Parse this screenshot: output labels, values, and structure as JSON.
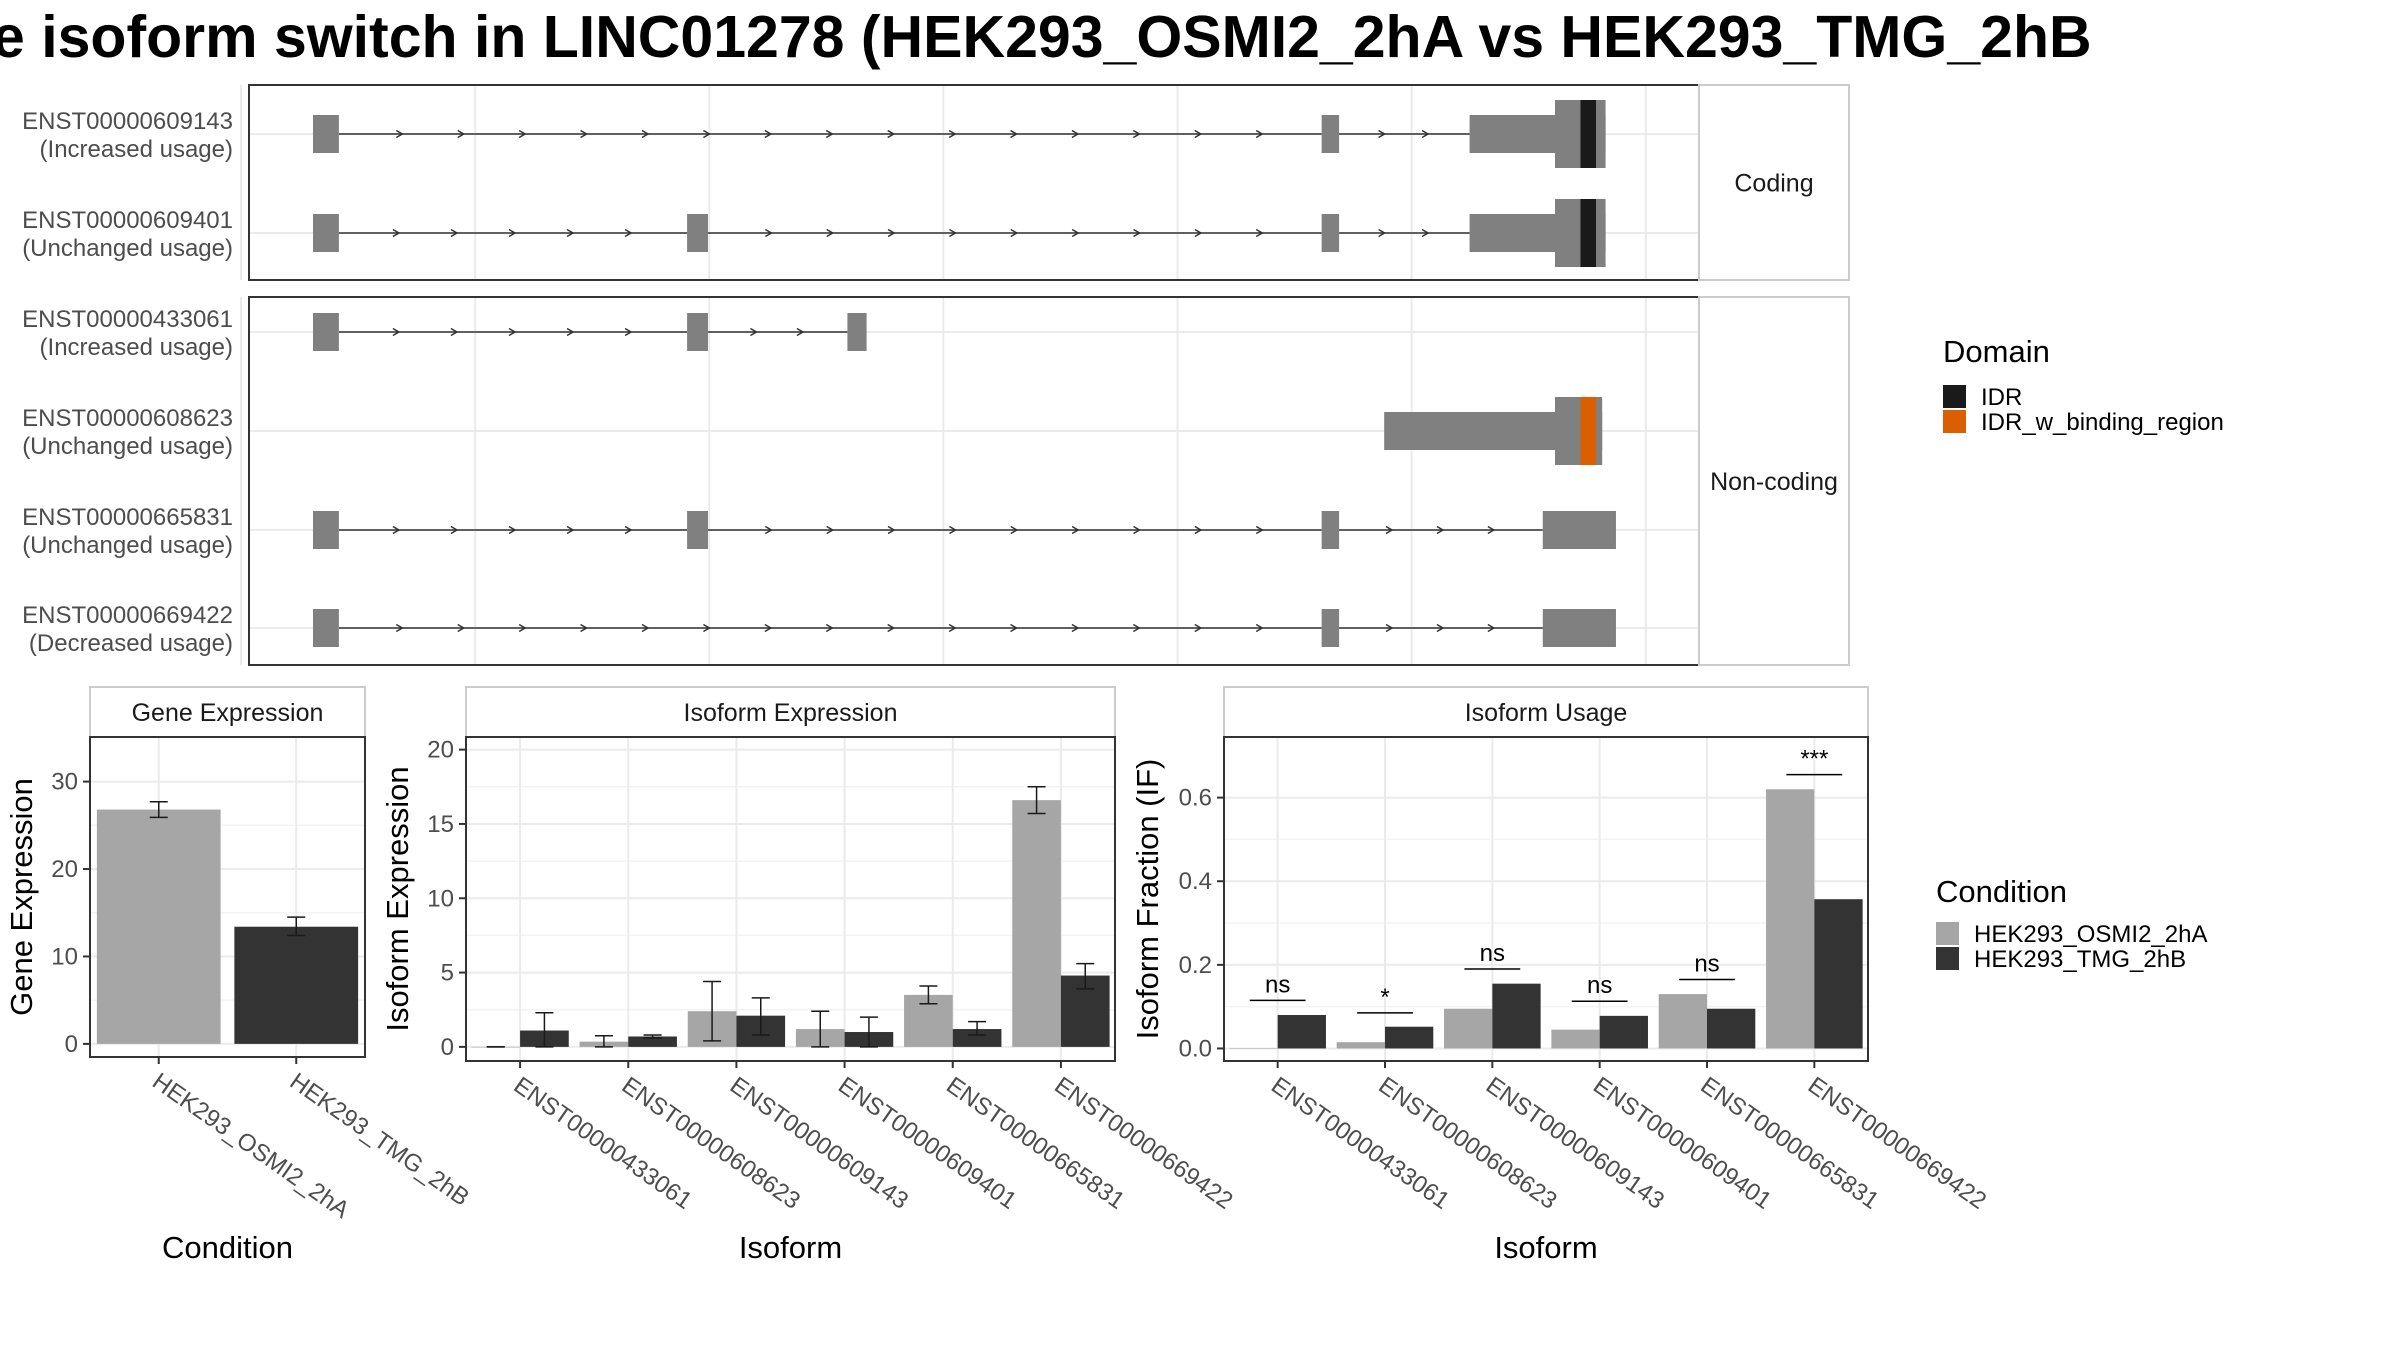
{
  "title": "e isoform switch in LINC01278 (HEK293_OSMI2_2hA vs HEK293_TMG_2hB",
  "colors": {
    "exon": "#808080",
    "intron": "#333333",
    "cond_a": "#a6a6a6",
    "cond_b": "#333333",
    "IDR": "#1a1a1a",
    "IDR_w_binding_region": "#d95f02",
    "grid": "#ebebeb",
    "panel_border": "#333333",
    "strip_bg": "#ffffff"
  },
  "chart_data": [
    {
      "type": "gene-structure",
      "panels": [
        {
          "strip": "Coding",
          "transcripts": [
            {
              "id": "ENST00000609143",
              "usage": "(Increased usage)",
              "exons": [
                [
                  0.0,
                  0.0197
                ],
                [
                  0.7676,
                  0.7809
                ],
                [
                  0.8802,
                  0.9837
                ]
              ],
              "cds": [
                0.9452,
                0.9837
              ],
              "domains": [
                {
                  "name": "IDR",
                  "range": [
                    0.9646,
                    0.9764
                  ]
                }
              ]
            },
            {
              "id": "ENST00000609401",
              "usage": "(Unchanged usage)",
              "exons": [
                [
                  0.0,
                  0.0197
                ],
                [
                  0.2847,
                  0.3006
                ],
                [
                  0.7676,
                  0.7809
                ],
                [
                  0.8802,
                  0.9837
                ]
              ],
              "cds": [
                0.9452,
                0.9837
              ],
              "domains": [
                {
                  "name": "IDR",
                  "range": [
                    0.9646,
                    0.9764
                  ]
                }
              ]
            }
          ]
        },
        {
          "strip": "Non-coding",
          "transcripts": [
            {
              "id": "ENST00000433061",
              "usage": "(Increased usage)",
              "exons": [
                [
                  0.0,
                  0.0197
                ],
                [
                  0.2847,
                  0.3006
                ],
                [
                  0.4067,
                  0.4213
                ]
              ],
              "cds": null,
              "domains": []
            },
            {
              "id": "ENST00000608623",
              "usage": "(Unchanged usage)",
              "exons": [
                [
                  0.8152,
                  0.9811
                ]
              ],
              "cds": [
                0.9452,
                0.9811
              ],
              "domains": [
                {
                  "name": "IDR_w_binding_region",
                  "range": [
                    0.9646,
                    0.9764
                  ]
                }
              ]
            },
            {
              "id": "ENST00000665831",
              "usage": "(Unchanged usage)",
              "exons": [
                [
                  0.0,
                  0.0197
                ],
                [
                  0.2847,
                  0.3006
                ],
                [
                  0.7676,
                  0.7809
                ],
                [
                  0.9359,
                  0.9916
                ]
              ],
              "cds": null,
              "domains": []
            },
            {
              "id": "ENST00000669422",
              "usage": "(Decreased usage)",
              "exons": [
                [
                  0.0,
                  0.0197
                ],
                [
                  0.7676,
                  0.7809
                ],
                [
                  0.9359,
                  0.9916
                ]
              ],
              "cds": null,
              "domains": []
            }
          ]
        }
      ],
      "legend": {
        "title": "Domain",
        "entries": [
          "IDR",
          "IDR_w_binding_region"
        ]
      }
    },
    {
      "type": "bar",
      "strip": "Gene Expression",
      "xlabel": "Condition",
      "ylabel": "Gene Expression",
      "categories": [
        "HEK293_OSMI2_2hA",
        "HEK293_TMG_2hB"
      ],
      "values": [
        26.8,
        13.4
      ],
      "errors": [
        [
          25.9,
          27.7
        ],
        [
          12.4,
          14.5
        ]
      ],
      "ylim": [
        -1.5,
        35.1
      ],
      "yticks": [
        0,
        10,
        20,
        30
      ],
      "grid": true
    },
    {
      "type": "bar",
      "strip": "Isoform Expression",
      "xlabel": "Isoform",
      "ylabel": "Isoform Expression",
      "categories": [
        "ENST00000433061",
        "ENST00000608623",
        "ENST00000609143",
        "ENST00000609401",
        "ENST00000665831",
        "ENST00000669422"
      ],
      "series": [
        {
          "name": "HEK293_OSMI2_2hA",
          "values": [
            0.0,
            0.35,
            2.4,
            1.2,
            3.5,
            16.6
          ],
          "errors": [
            [
              0.0,
              0.0
            ],
            [
              0.0,
              0.75
            ],
            [
              0.4,
              4.4
            ],
            [
              0.0,
              2.4
            ],
            [
              2.9,
              4.1
            ],
            [
              15.7,
              17.5
            ]
          ]
        },
        {
          "name": "HEK293_TMG_2hB",
          "values": [
            1.1,
            0.7,
            2.1,
            1.0,
            1.2,
            4.8
          ],
          "errors": [
            [
              0.0,
              2.3
            ],
            [
              0.6,
              0.8
            ],
            [
              0.8,
              3.3
            ],
            [
              0.0,
              2.0
            ],
            [
              0.8,
              1.7
            ],
            [
              3.9,
              5.6
            ]
          ]
        }
      ],
      "ylim": [
        -0.95,
        20.85
      ],
      "yticks": [
        0,
        5,
        10,
        15,
        20
      ],
      "grid": true
    },
    {
      "type": "bar",
      "strip": "Isoform Usage",
      "xlabel": "Isoform",
      "ylabel": "Isoform Fraction (IF)",
      "categories": [
        "ENST00000433061",
        "ENST00000608623",
        "ENST00000609143",
        "ENST00000609401",
        "ENST00000665831",
        "ENST00000669422"
      ],
      "series": [
        {
          "name": "HEK293_OSMI2_2hA",
          "values": [
            0.0,
            0.015,
            0.095,
            0.045,
            0.13,
            0.62
          ]
        },
        {
          "name": "HEK293_TMG_2hB",
          "values": [
            0.08,
            0.052,
            0.155,
            0.078,
            0.095,
            0.357
          ]
        }
      ],
      "significance": [
        {
          "label": "ns",
          "y": 0.115
        },
        {
          "label": "*",
          "y": 0.085
        },
        {
          "label": "ns",
          "y": 0.19
        },
        {
          "label": "ns",
          "y": 0.113
        },
        {
          "label": "ns",
          "y": 0.165
        },
        {
          "label": "***",
          "y": 0.655
        }
      ],
      "ylim": [
        -0.03,
        0.745
      ],
      "yticks": [
        0.0,
        0.2,
        0.4,
        0.6
      ],
      "ytick_labels": [
        "0.0",
        "0.2",
        "0.4",
        "0.6"
      ],
      "grid": true
    }
  ],
  "condition_legend": {
    "title": "Condition",
    "entries": [
      "HEK293_OSMI2_2hA",
      "HEK293_TMG_2hB"
    ]
  }
}
